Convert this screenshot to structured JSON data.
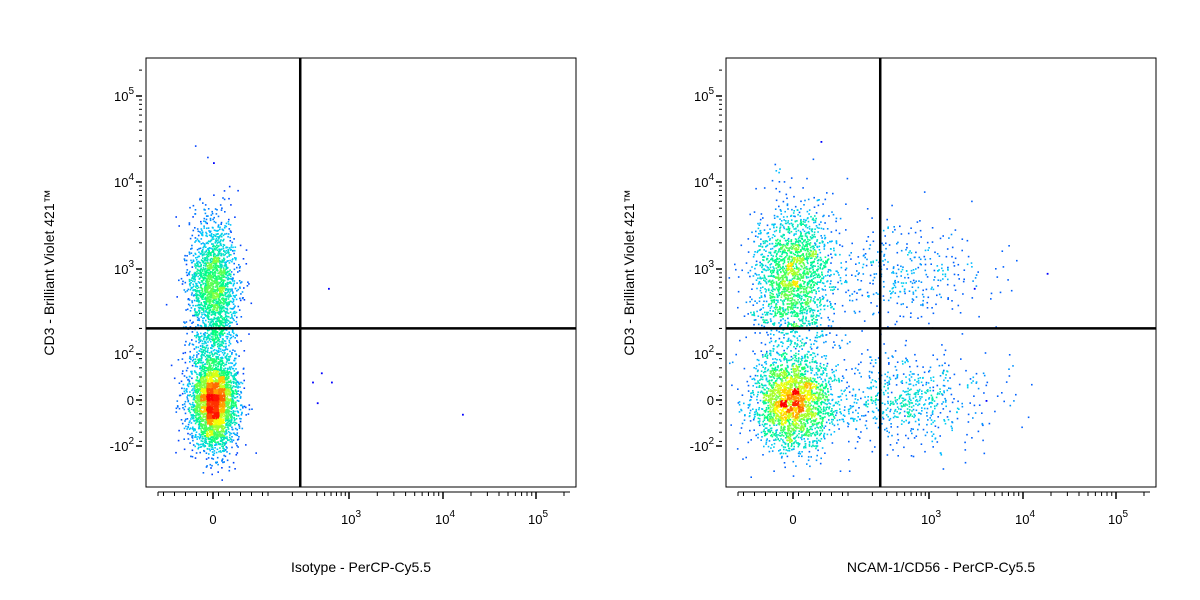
{
  "chart_data": [
    {
      "type": "scatter",
      "subtype": "flow-cytometry-density-dot-plot",
      "xlabel": "Isotype - PerCP-Cy5.5",
      "ylabel": "CD3 - Brilliant Violet 421™",
      "x_scale": "biexponential",
      "y_scale": "biexponential",
      "x_ticks": [
        "0",
        "10^3",
        "10^4",
        "10^5"
      ],
      "y_ticks": [
        "10^5",
        "10^4",
        "10^3",
        "10^2",
        "0",
        "-10^2"
      ],
      "gate": {
        "x": 250,
        "y": 200
      },
      "color_scale": [
        "#0000ff",
        "#00c8ff",
        "#00ff80",
        "#ffff00",
        "#ff0000"
      ],
      "populations": [
        {
          "x_center": 0,
          "y_center": 600,
          "x_spread": "narrow",
          "y_spread": "wide",
          "relative_count": 0.38
        },
        {
          "x_center": 0,
          "y_center": 0,
          "x_spread": "narrow",
          "y_spread": "medium",
          "relative_count": 0.62
        }
      ],
      "outliers": [
        {
          "x": 0,
          "y": 17000
        },
        {
          "x": 550,
          "y": 600
        },
        {
          "x": 350,
          "y": 40
        },
        {
          "x": 450,
          "y": 60
        },
        {
          "x": 600,
          "y": 40
        },
        {
          "x": 400,
          "y": -5
        },
        {
          "x": 16000,
          "y": -30
        }
      ]
    },
    {
      "type": "scatter",
      "subtype": "flow-cytometry-density-dot-plot",
      "xlabel": "NCAM-1/CD56 - PerCP-Cy5.5",
      "ylabel": "CD3 - Brilliant Violet 421™",
      "x_scale": "biexponential",
      "y_scale": "biexponential",
      "x_ticks": [
        "0",
        "10^3",
        "10^4",
        "10^5"
      ],
      "y_ticks": [
        "10^5",
        "10^4",
        "10^3",
        "10^2",
        "0",
        "-10^2"
      ],
      "gate": {
        "x": 250,
        "y": 200
      },
      "color_scale": [
        "#0000ff",
        "#00c8ff",
        "#00ff80",
        "#ffff00",
        "#ff0000"
      ],
      "populations": [
        {
          "x_center": 0,
          "y_center": 850,
          "x_spread": "medium",
          "y_spread": "wide",
          "relative_count": 0.36
        },
        {
          "x_center": 0,
          "y_center": 0,
          "x_spread": "medium",
          "y_spread": "medium",
          "relative_count": 0.44
        },
        {
          "x_center": 500,
          "y_center": 0,
          "x_spread": "wide",
          "y_spread": "medium",
          "relative_count": 0.13
        },
        {
          "x_center": 500,
          "y_center": 900,
          "x_spread": "wide",
          "y_spread": "medium",
          "relative_count": 0.07
        }
      ],
      "outliers": [
        {
          "x": 50,
          "y": 30000
        },
        {
          "x": 18000,
          "y": 900
        },
        {
          "x": 3000,
          "y": 600
        },
        {
          "x": 4000,
          "y": 0
        }
      ]
    }
  ]
}
